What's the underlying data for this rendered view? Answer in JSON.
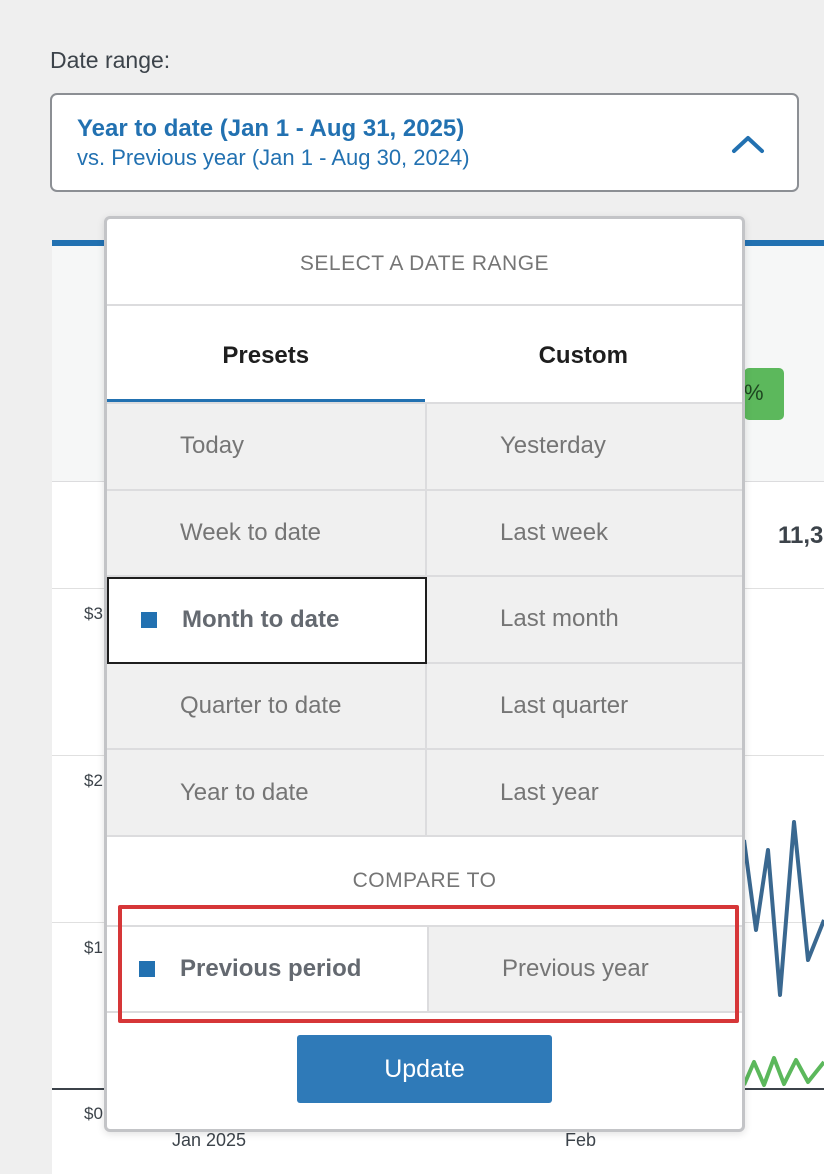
{
  "date_range": {
    "label": "Date range:",
    "primary": "Year to date (Jan 1 - Aug 31, 2025)",
    "secondary": "vs. Previous year (Jan 1 - Aug 30, 2024)"
  },
  "popover": {
    "title": "SELECT A DATE RANGE",
    "tabs": [
      {
        "label": "Presets",
        "active": true
      },
      {
        "label": "Custom",
        "active": false
      }
    ],
    "presets": [
      {
        "label": "Today"
      },
      {
        "label": "Yesterday"
      },
      {
        "label": "Week to date"
      },
      {
        "label": "Last week"
      },
      {
        "label": "Month to date",
        "selected": true
      },
      {
        "label": "Last month"
      },
      {
        "label": "Quarter to date"
      },
      {
        "label": "Last quarter"
      },
      {
        "label": "Year to date"
      },
      {
        "label": "Last year"
      }
    ],
    "compare_title": "COMPARE TO",
    "compare": [
      {
        "label": "Previous period",
        "selected": true
      },
      {
        "label": "Previous year",
        "selected": false
      }
    ],
    "update_label": "Update"
  },
  "background": {
    "badge": "%",
    "value": "11,3",
    "y_labels": [
      "$3",
      "$2",
      "$1",
      "$0"
    ],
    "x_labels": [
      "Jan 2025",
      "Feb"
    ]
  },
  "colors": {
    "accent": "#2271b1",
    "highlight": "#d63638",
    "series_primary": "#3a6890",
    "series_secondary": "#5cb85c"
  }
}
